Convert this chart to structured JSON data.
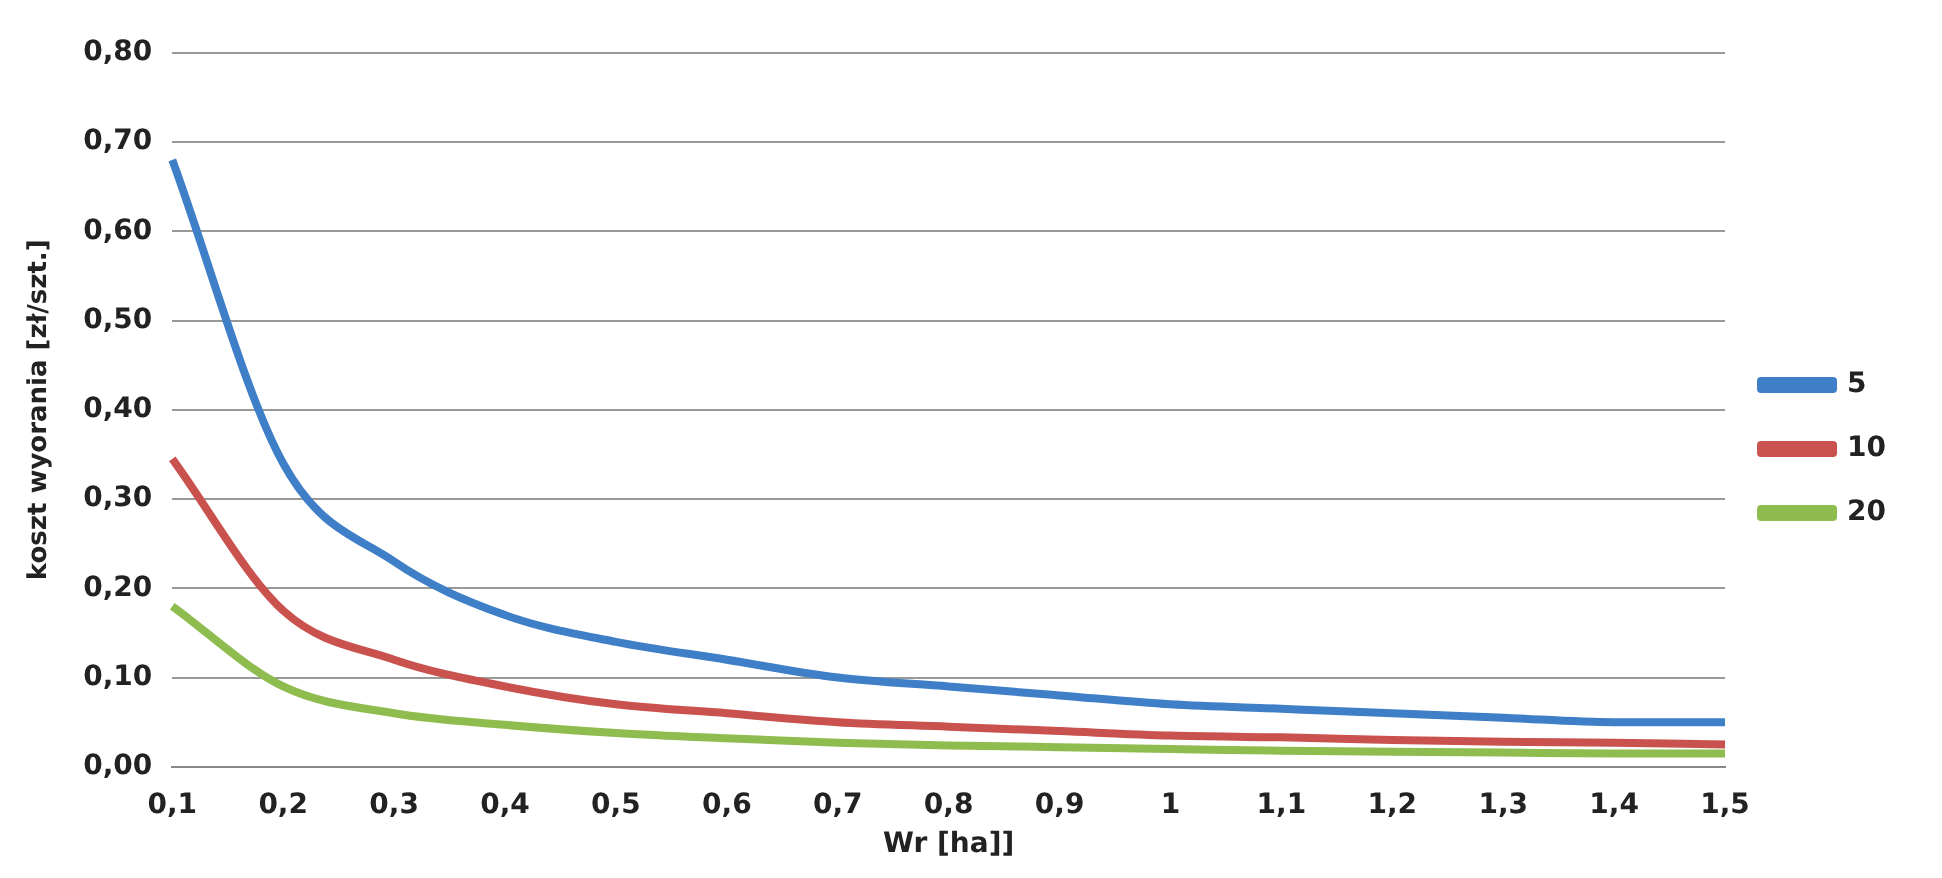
{
  "chart_data": {
    "type": "line",
    "xlabel": "Wr [ha]]",
    "ylabel": "koszt wyorania [zł/szt.]",
    "categories": [
      "0,1",
      "0,2",
      "0,3",
      "0,4",
      "0,5",
      "0,6",
      "0,7",
      "0,8",
      "0,9",
      "1",
      "1,1",
      "1,2",
      "1,3",
      "1,4",
      "1,5"
    ],
    "series": [
      {
        "name": "5",
        "color": "#3f7fc7",
        "values": [
          0.68,
          0.34,
          0.23,
          0.17,
          0.14,
          0.12,
          0.1,
          0.09,
          0.08,
          0.07,
          0.065,
          0.06,
          0.055,
          0.05,
          0.05
        ]
      },
      {
        "name": "10",
        "color": "#c9524e",
        "values": [
          0.345,
          0.175,
          0.12,
          0.09,
          0.07,
          0.06,
          0.05,
          0.045,
          0.04,
          0.035,
          0.033,
          0.03,
          0.028,
          0.027,
          0.025
        ]
      },
      {
        "name": "20",
        "color": "#8fbc4f",
        "values": [
          0.18,
          0.09,
          0.06,
          0.047,
          0.038,
          0.032,
          0.027,
          0.024,
          0.022,
          0.02,
          0.018,
          0.017,
          0.016,
          0.015,
          0.015
        ]
      }
    ],
    "ylim": [
      0,
      0.8
    ],
    "yticks": [
      {
        "value": 0,
        "label": "0,00"
      },
      {
        "value": 0.1,
        "label": "0,10"
      },
      {
        "value": 0.2,
        "label": "0,20"
      },
      {
        "value": 0.3,
        "label": "0,30"
      },
      {
        "value": 0.4,
        "label": "0,40"
      },
      {
        "value": 0.5,
        "label": "0,50"
      },
      {
        "value": 0.6,
        "label": "0,60"
      },
      {
        "value": 0.7,
        "label": "0,70"
      },
      {
        "value": 0.8,
        "label": "0,80"
      }
    ],
    "grid": "y",
    "legend": "right",
    "marker": "none",
    "line_style": "solid"
  }
}
